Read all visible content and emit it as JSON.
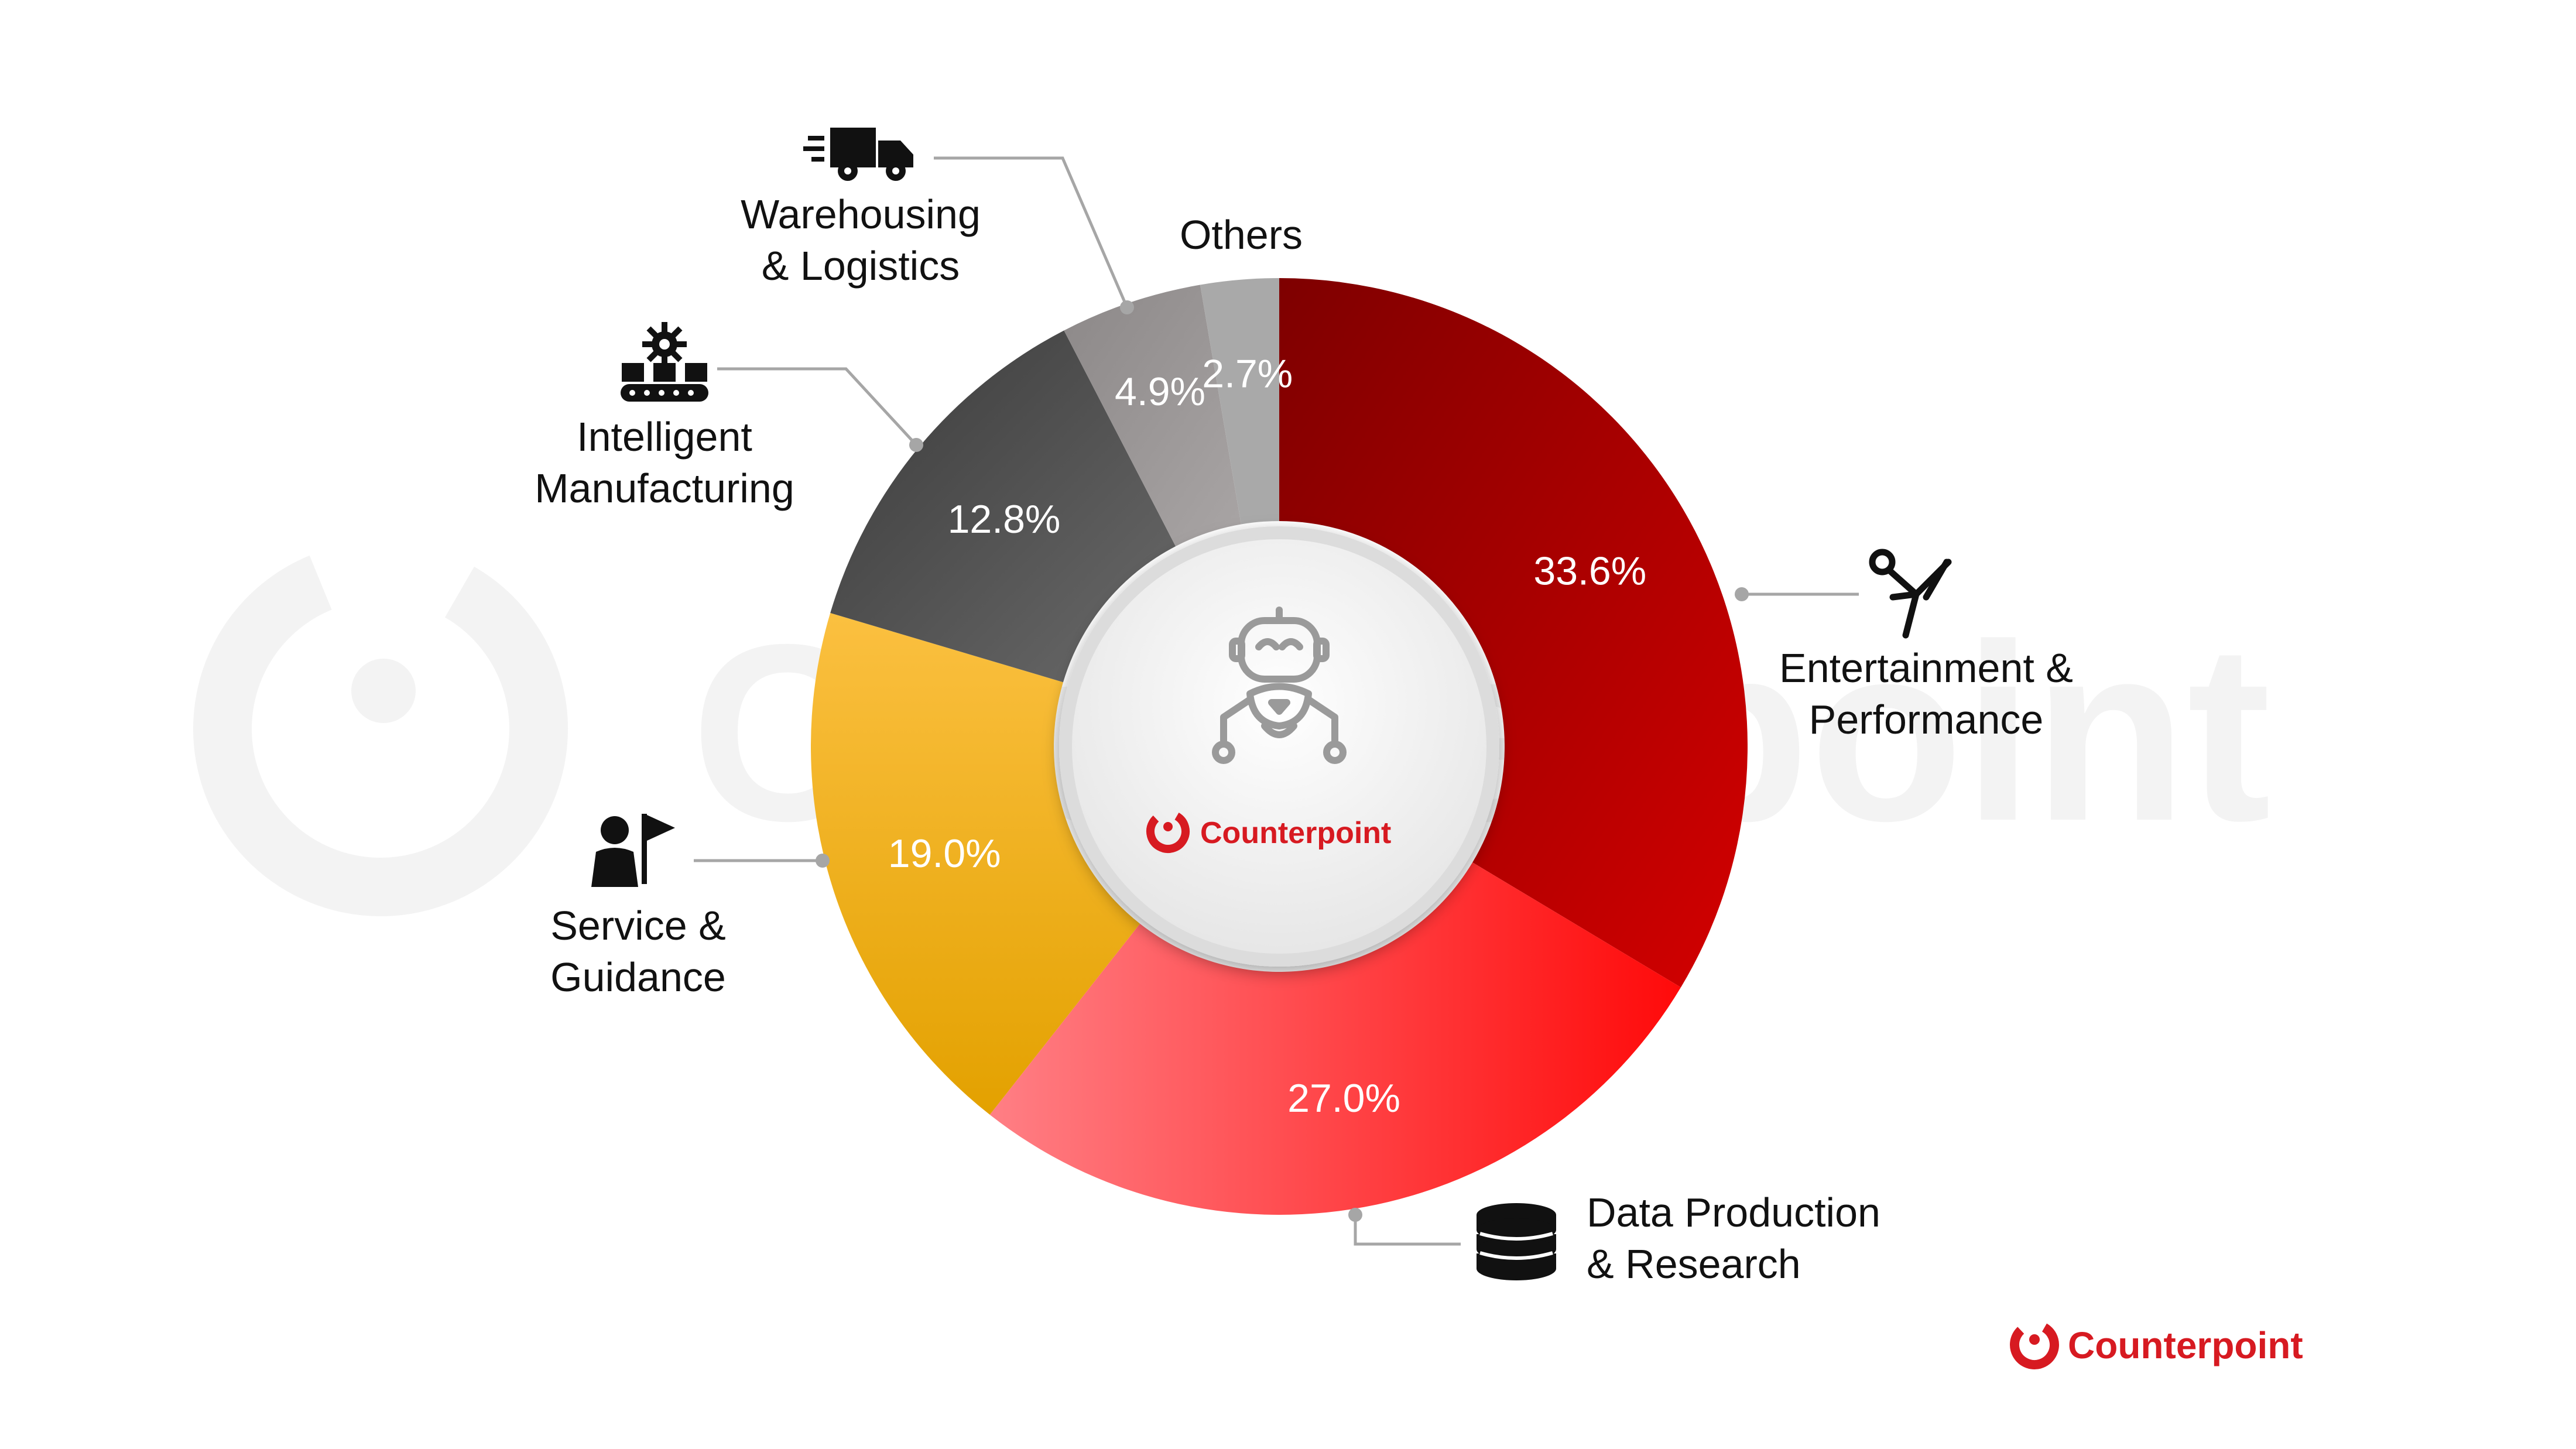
{
  "chart_data": {
    "type": "pie",
    "donut": true,
    "categories": [
      "Entertainment & Performance",
      "Data Production & Research",
      "Service & Guidance",
      "Intelligent Manufacturing",
      "Warehousing & Logistics",
      "Others"
    ],
    "values": [
      33.6,
      27.0,
      19.0,
      12.8,
      4.9,
      2.7
    ],
    "value_labels": [
      "33.6%",
      "27.0%",
      "19.0%",
      "12.8%",
      "4.9%",
      "2.7%"
    ],
    "label_lines": [
      [
        "Entertainment &",
        "Performance"
      ],
      [
        "Data Production",
        "& Research"
      ],
      [
        "Service &",
        "Guidance"
      ],
      [
        "Intelligent",
        "Manufacturing"
      ],
      [
        "Warehousing",
        "& Logistics"
      ],
      [
        "Others"
      ]
    ],
    "icons": [
      "performer-kick-icon",
      "database-icon",
      "guide-flag-icon",
      "conveyor-gear-icon",
      "delivery-truck-icon",
      ""
    ],
    "colors": [
      [
        "#7e0000",
        "#d40000"
      ],
      [
        "#ff7f85",
        "#ff0a0a"
      ],
      [
        "#e3a100",
        "#fbc040"
      ],
      [
        "#3a3a3a",
        "#6a6a6a"
      ],
      [
        "#8c8888",
        "#a9a5a5"
      ],
      [
        "#a9a9a9",
        "#a9a9a9"
      ]
    ],
    "legend": "none",
    "start_angle": "12 o'clock, clockwise"
  },
  "center_badge": {
    "brand": "Counterpoint",
    "icon": "robot-icon"
  },
  "footer_brand": {
    "text": "Counterpoint",
    "color": "#d71a21"
  },
  "watermark": {
    "text": "Counterpoint"
  }
}
